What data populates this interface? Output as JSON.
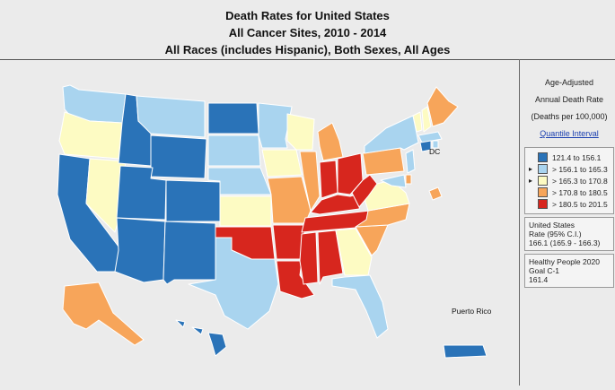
{
  "title": {
    "line1": "Death Rates for United States",
    "line2": "All Cancer Sites, 2010 - 2014",
    "line3": "All Races (includes Hispanic), Both Sexes, All Ages"
  },
  "legend": {
    "heading1": "Age-Adjusted",
    "heading2": "Annual Death Rate",
    "heading3": "(Deaths per 100,000)",
    "link": "Quantile Interval",
    "classes": [
      {
        "label": "121.4  to  156.1",
        "color": "#2a73b8"
      },
      {
        "label": "> 156.1  to  165.3",
        "color": "#a9d4ef"
      },
      {
        "label": "> 165.3  to  170.8",
        "color": "#fdfbc3"
      },
      {
        "label": "> 170.8  to  180.5",
        "color": "#f7a55a"
      },
      {
        "label": "> 180.5  to  201.5",
        "color": "#d7261e"
      }
    ],
    "us_box": {
      "line1": "United States",
      "line2": "Rate (95% C.I.)",
      "line3": "166.1 (165.9 - 166.3)"
    },
    "hp_box": {
      "line1": "Healthy People 2020",
      "line2": "Goal C-1",
      "line3": "161.4"
    }
  },
  "map": {
    "pr_label": "Puerto Rico",
    "dc_label": "DC",
    "state_classes": {
      "WA": 1,
      "OR": 2,
      "CA": 0,
      "NV": 2,
      "ID": 0,
      "MT": 1,
      "WY": 0,
      "UT": 0,
      "AZ": 0,
      "CO": 0,
      "NM": 0,
      "ND": 0,
      "SD": 1,
      "NE": 1,
      "KS": 2,
      "OK": 4,
      "TX": 1,
      "MN": 1,
      "IA": 2,
      "MO": 3,
      "AR": 4,
      "LA": 4,
      "WI": 2,
      "IL": 3,
      "MI": 3,
      "IN": 4,
      "OH": 4,
      "KY": 4,
      "TN": 4,
      "MS": 4,
      "AL": 4,
      "GA": 2,
      "FL": 1,
      "SC": 3,
      "NC": 3,
      "VA": 2,
      "WV": 4,
      "PA": 3,
      "NY": 1,
      "VT": 2,
      "NH": 2,
      "ME": 3,
      "MA": 1,
      "CT": 0,
      "NJ": 1,
      "DE": 3,
      "MD": 1,
      "RI": 1,
      "AK": 3,
      "HI": 0,
      "PR": 0,
      "DC": 3
    }
  }
}
